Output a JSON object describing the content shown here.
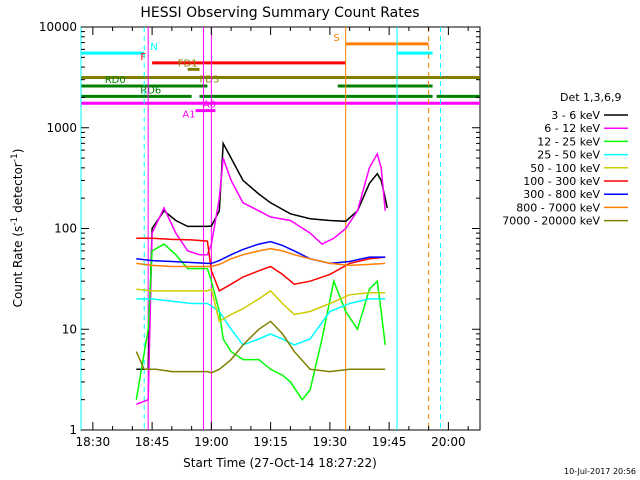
{
  "chart_data": {
    "type": "line",
    "title": "HESSI Observing Summary Count Rates",
    "xlabel": "Start Time (27-Oct-14 18:27:22)",
    "ylabel": "Count Rate (s^-1 detector^-1)",
    "ylabel_prefix": "Count Rate (s",
    "ylabel_mid": " detector",
    "ylabel_suffix": ")",
    "ylabel_exp": "-1",
    "yscale": "log",
    "ylim": [
      1,
      10000
    ],
    "xlim_minutes_after_1830": [
      -3,
      98
    ],
    "x_ticks": [
      {
        "label": "18:30",
        "m": 0
      },
      {
        "label": "18:45",
        "m": 15
      },
      {
        "label": "19:00",
        "m": 30
      },
      {
        "label": "19:15",
        "m": 45
      },
      {
        "label": "19:30",
        "m": 60
      },
      {
        "label": "19:45",
        "m": 75
      },
      {
        "label": "20:00",
        "m": 90
      }
    ],
    "y_ticks": [
      {
        "label": "1",
        "v": 1
      },
      {
        "label": "10",
        "v": 10
      },
      {
        "label": "100",
        "v": 100
      },
      {
        "label": "1000",
        "v": 1000
      },
      {
        "label": "10000",
        "v": 10000
      }
    ],
    "legend_title": "Det 1,3,6,9",
    "series": [
      {
        "name": "3 - 6 keV",
        "color": "#000000",
        "points": [
          [
            11,
            4
          ],
          [
            14,
            4
          ],
          [
            15,
            100
          ],
          [
            18,
            150
          ],
          [
            21,
            120
          ],
          [
            24,
            105
          ],
          [
            27,
            105
          ],
          [
            29,
            105
          ],
          [
            30,
            106
          ],
          [
            32,
            150
          ],
          [
            33,
            700
          ],
          [
            35,
            500
          ],
          [
            38,
            300
          ],
          [
            42,
            220
          ],
          [
            45,
            180
          ],
          [
            50,
            140
          ],
          [
            55,
            125
          ],
          [
            60,
            120
          ],
          [
            64,
            118
          ],
          [
            67,
            150
          ],
          [
            70,
            280
          ],
          [
            72,
            350
          ],
          [
            73,
            300
          ],
          [
            74,
            200
          ],
          [
            74.5,
            160
          ]
        ]
      },
      {
        "name": "6 - 12 keV",
        "color": "#ff00ff",
        "points": [
          [
            11,
            1.8
          ],
          [
            14,
            2
          ],
          [
            15,
            90
          ],
          [
            18,
            160
          ],
          [
            21,
            90
          ],
          [
            24,
            60
          ],
          [
            27,
            55
          ],
          [
            29,
            55
          ],
          [
            30,
            70
          ],
          [
            32,
            200
          ],
          [
            33,
            500
          ],
          [
            35,
            300
          ],
          [
            38,
            180
          ],
          [
            42,
            150
          ],
          [
            45,
            130
          ],
          [
            50,
            120
          ],
          [
            55,
            90
          ],
          [
            58,
            70
          ],
          [
            61,
            80
          ],
          [
            64,
            100
          ],
          [
            67,
            150
          ],
          [
            70,
            400
          ],
          [
            72,
            550
          ],
          [
            73,
            400
          ],
          [
            74,
            150
          ]
        ]
      },
      {
        "name": "12 - 25 keV",
        "color": "#00ff00",
        "points": [
          [
            11,
            2
          ],
          [
            14,
            10
          ],
          [
            15,
            60
          ],
          [
            18,
            70
          ],
          [
            21,
            55
          ],
          [
            24,
            40
          ],
          [
            27,
            40
          ],
          [
            29,
            40
          ],
          [
            30,
            30
          ],
          [
            32,
            15
          ],
          [
            33,
            8
          ],
          [
            35,
            6
          ],
          [
            38,
            5
          ],
          [
            42,
            5
          ],
          [
            45,
            4
          ],
          [
            48,
            3.5
          ],
          [
            50,
            3
          ],
          [
            53,
            2
          ],
          [
            55,
            2.5
          ],
          [
            58,
            8
          ],
          [
            61,
            30
          ],
          [
            64,
            15
          ],
          [
            67,
            10
          ],
          [
            70,
            25
          ],
          [
            72,
            30
          ],
          [
            73,
            15
          ],
          [
            74,
            7
          ]
        ]
      },
      {
        "name": "25 - 50 keV",
        "color": "#00ffff",
        "points": [
          [
            11,
            20
          ],
          [
            15,
            20
          ],
          [
            20,
            19
          ],
          [
            25,
            18
          ],
          [
            29,
            18
          ],
          [
            30,
            17
          ],
          [
            32,
            15
          ],
          [
            35,
            10
          ],
          [
            38,
            7
          ],
          [
            42,
            8
          ],
          [
            45,
            9
          ],
          [
            48,
            8
          ],
          [
            51,
            7
          ],
          [
            55,
            8
          ],
          [
            60,
            15
          ],
          [
            65,
            18
          ],
          [
            70,
            20
          ],
          [
            74,
            20
          ]
        ]
      },
      {
        "name": "50 - 100 keV",
        "color": "#cccc00",
        "points": [
          [
            11,
            25
          ],
          [
            15,
            24
          ],
          [
            20,
            24
          ],
          [
            25,
            24
          ],
          [
            29,
            24
          ],
          [
            30,
            25
          ],
          [
            32,
            12
          ],
          [
            35,
            14
          ],
          [
            38,
            16
          ],
          [
            42,
            20
          ],
          [
            45,
            24
          ],
          [
            48,
            18
          ],
          [
            51,
            14
          ],
          [
            55,
            15
          ],
          [
            60,
            18
          ],
          [
            65,
            22
          ],
          [
            70,
            23
          ],
          [
            74,
            23
          ]
        ]
      },
      {
        "name": "100 - 300 keV",
        "color": "#ff0000",
        "points": [
          [
            11,
            80
          ],
          [
            15,
            80
          ],
          [
            20,
            78
          ],
          [
            25,
            77
          ],
          [
            29,
            75
          ],
          [
            30,
            38
          ],
          [
            32,
            24
          ],
          [
            35,
            28
          ],
          [
            38,
            33
          ],
          [
            42,
            38
          ],
          [
            45,
            42
          ],
          [
            48,
            35
          ],
          [
            51,
            28
          ],
          [
            55,
            30
          ],
          [
            60,
            35
          ],
          [
            65,
            45
          ],
          [
            70,
            50
          ],
          [
            74,
            52
          ]
        ]
      },
      {
        "name": "300 - 800 keV",
        "color": "#0000ff",
        "points": [
          [
            11,
            50
          ],
          [
            15,
            48
          ],
          [
            20,
            47
          ],
          [
            25,
            46
          ],
          [
            29,
            45
          ],
          [
            30,
            45
          ],
          [
            32,
            48
          ],
          [
            35,
            55
          ],
          [
            38,
            62
          ],
          [
            42,
            70
          ],
          [
            45,
            74
          ],
          [
            48,
            68
          ],
          [
            51,
            60
          ],
          [
            55,
            50
          ],
          [
            60,
            45
          ],
          [
            65,
            47
          ],
          [
            70,
            52
          ],
          [
            74,
            52
          ]
        ]
      },
      {
        "name": "800 - 7000 keV",
        "color": "#ff8000",
        "points": [
          [
            11,
            45
          ],
          [
            15,
            43
          ],
          [
            20,
            42
          ],
          [
            25,
            42
          ],
          [
            29,
            42
          ],
          [
            30,
            42
          ],
          [
            32,
            44
          ],
          [
            35,
            50
          ],
          [
            38,
            55
          ],
          [
            42,
            60
          ],
          [
            45,
            63
          ],
          [
            48,
            60
          ],
          [
            51,
            55
          ],
          [
            55,
            50
          ],
          [
            60,
            45
          ],
          [
            65,
            43
          ],
          [
            70,
            44
          ],
          [
            74,
            45
          ]
        ]
      },
      {
        "name": "7000 - 20000 keV",
        "color": "#808000",
        "points": [
          [
            11,
            6
          ],
          [
            13,
            4
          ],
          [
            16,
            4
          ],
          [
            20,
            3.8
          ],
          [
            25,
            3.8
          ],
          [
            29,
            3.8
          ],
          [
            30,
            3.7
          ],
          [
            32,
            4
          ],
          [
            35,
            5
          ],
          [
            38,
            7
          ],
          [
            42,
            10
          ],
          [
            45,
            12
          ],
          [
            48,
            9
          ],
          [
            51,
            6
          ],
          [
            55,
            4
          ],
          [
            60,
            3.8
          ],
          [
            65,
            4
          ],
          [
            70,
            4
          ],
          [
            74,
            4
          ]
        ]
      }
    ],
    "state_bars": [
      {
        "label": "N",
        "color": "#00ffff",
        "level": 5500,
        "segments": [
          [
            -3,
            13
          ],
          [
            77,
            86
          ]
        ]
      },
      {
        "label": "F",
        "color": "#ff0000",
        "level": 4400,
        "segments": [
          [
            15,
            64
          ]
        ]
      },
      {
        "label": "S",
        "color": "#ff8000",
        "level": 6800,
        "segments": [
          [
            64,
            85
          ]
        ]
      },
      {
        "label": "FD1",
        "color": "#808000",
        "level": 3800,
        "segments": [
          [
            24,
            27
          ]
        ]
      },
      {
        "label": "FD3",
        "color": "#808000",
        "level": 3150,
        "segments": [
          [
            -3,
            98
          ]
        ]
      },
      {
        "label": "RD0",
        "color": "#008000",
        "level": 2600,
        "segments": [
          [
            -3,
            29
          ],
          [
            62,
            86
          ]
        ]
      },
      {
        "label": "RD6",
        "color": "#008000",
        "level": 2050,
        "segments": [
          [
            -3,
            25
          ],
          [
            27,
            86
          ]
        ]
      },
      {
        "label": "",
        "color": "#008000",
        "level": 2050,
        "segments": [
          [
            87,
            98
          ]
        ]
      },
      {
        "label": "",
        "color": "#ff00ff",
        "level": 1750,
        "segments": [
          [
            -3,
            98
          ]
        ]
      },
      {
        "label": "A1",
        "color": "#ff00ff",
        "level": 1480,
        "segments": [
          [
            26,
            29
          ]
        ]
      },
      {
        "label": "A0",
        "color": "#ff00ff",
        "level": 1480,
        "segments": [
          [
            29,
            31
          ]
        ]
      }
    ],
    "vertical_lines": [
      {
        "color": "#00ffff",
        "m": -3,
        "dash": false
      },
      {
        "color": "#00ffff",
        "m": 13,
        "dash": true
      },
      {
        "color": "#ff00ff",
        "m": 14,
        "dash": false
      },
      {
        "color": "#ff00ff",
        "m": 28,
        "dash": false
      },
      {
        "color": "#ff00ff",
        "m": 30,
        "dash": false
      },
      {
        "color": "#ff8000",
        "m": 64,
        "dash": false
      },
      {
        "color": "#00ffff",
        "m": 77,
        "dash": false
      },
      {
        "color": "#ff8000",
        "m": 85,
        "dash": true
      },
      {
        "color": "#00ffff",
        "m": 88,
        "dash": true
      }
    ]
  },
  "footer_timestamp": "10-Jul-2017 20:56"
}
